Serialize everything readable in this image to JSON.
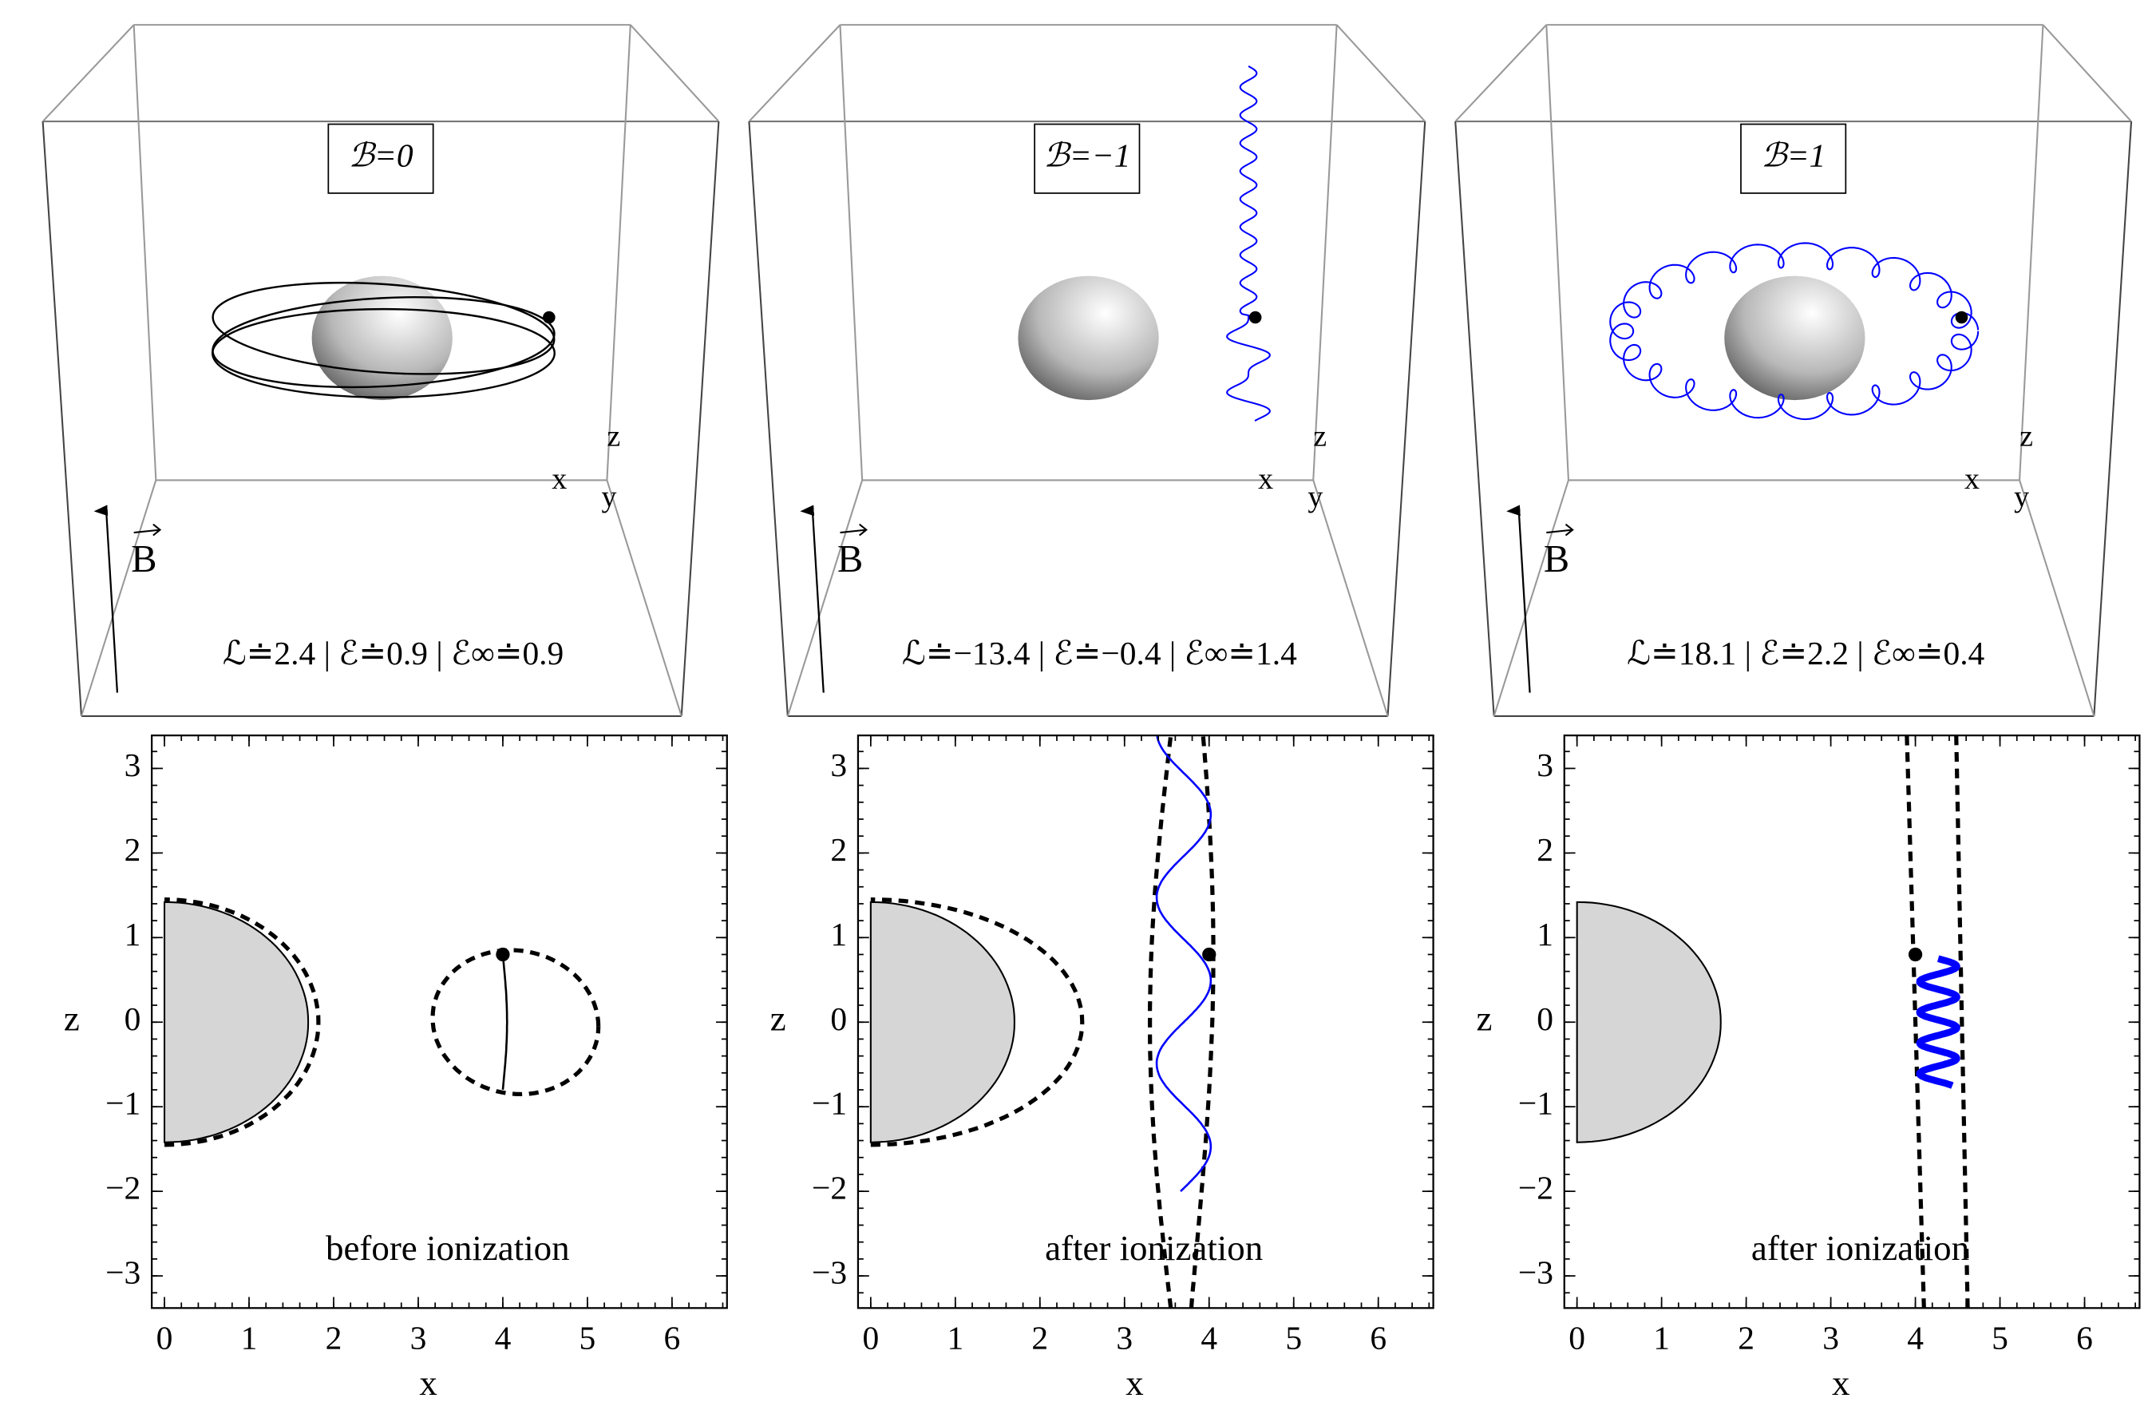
{
  "chart_data": [
    {
      "type": "orbit",
      "title": "ℬ=0",
      "subtitle": "ℒ≐2.4 | ℰ≐0.9 | ℰ∞≐0.9",
      "annotation": "before ionization",
      "color": "#000000",
      "box_labels": {
        "x": "x",
        "y": "y",
        "z": "z",
        "field": "B"
      },
      "xlabel": "x",
      "ylabel": "z",
      "xlim": [
        -0.15,
        6.65
      ],
      "ylim": [
        -3.38,
        3.39
      ],
      "xticks": [
        0,
        1,
        2,
        3,
        4,
        5,
        6
      ],
      "yticks": [
        {
          "value": -3,
          "label": "−3"
        },
        {
          "value": -2,
          "label": "−2"
        },
        {
          "value": -1,
          "label": "−1"
        },
        0,
        1,
        2,
        3
      ],
      "marker": {
        "x": 4,
        "y": 0.8
      }
    },
    {
      "type": "orbit",
      "title": "ℬ=−1",
      "subtitle": "ℒ≐−13.4 | ℰ≐−0.4 | ℰ∞≐1.4",
      "annotation": "after ionization",
      "color": "#0000ff",
      "box_labels": {
        "x": "x",
        "y": "y",
        "z": "z",
        "field": "B"
      },
      "xlabel": "x",
      "ylabel": "z",
      "xlim": [
        -0.15,
        6.65
      ],
      "ylim": [
        -3.38,
        3.39
      ],
      "xticks": [
        0,
        1,
        2,
        3,
        4,
        5,
        6
      ],
      "yticks": [
        {
          "value": -3,
          "label": "−3"
        },
        {
          "value": -2,
          "label": "−2"
        },
        {
          "value": -1,
          "label": "−1"
        },
        0,
        1,
        2,
        3
      ],
      "marker": {
        "x": 4,
        "y": 0.8
      }
    },
    {
      "type": "orbit",
      "title": "ℬ=1",
      "subtitle": "ℒ≐18.1 | ℰ≐2.2 | ℰ∞≐0.4",
      "annotation": "after ionization",
      "color": "#0000ff",
      "box_labels": {
        "x": "x",
        "y": "y",
        "z": "z",
        "field": "B"
      },
      "xlabel": "x",
      "ylabel": "z",
      "xlim": [
        -0.15,
        6.65
      ],
      "ylim": [
        -3.38,
        3.39
      ],
      "xticks": [
        0,
        1,
        2,
        3,
        4,
        5,
        6
      ],
      "yticks": [
        {
          "value": -3,
          "label": "−3"
        },
        {
          "value": -2,
          "label": "−2"
        },
        {
          "value": -1,
          "label": "−1"
        },
        0,
        1,
        2,
        3
      ],
      "marker": {
        "x": 4,
        "y": 0.8
      }
    }
  ]
}
